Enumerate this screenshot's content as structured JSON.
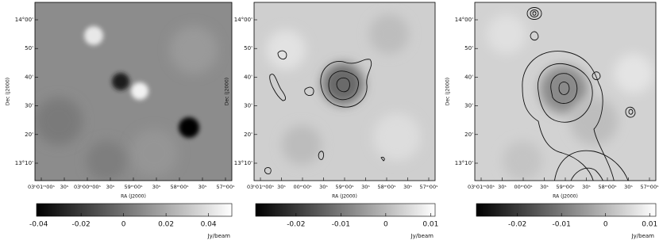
{
  "panels": [
    {
      "y_label": "Dec (J2000)",
      "y_ticks": [
        "14°00'",
        "50'",
        "40'",
        "30'",
        "20'",
        "13°10'"
      ],
      "x_label": "RA (J2000)",
      "x_ticks": [
        "03ʰ01ᵐ00ˢ",
        "30ˢ",
        "03ʰ00ᵐ00ˢ",
        "30ˢ",
        "59ᵐ00ˢ",
        "30ˢ",
        "58ᵐ00ˢ",
        "30ˢ",
        "57ᵐ00ˢ"
      ],
      "colorbar": {
        "lim": [
          -0.041,
          0.051
        ],
        "ticks": [
          -0.04,
          -0.02,
          0,
          0.02,
          0.04
        ],
        "label": "Jy/beam"
      }
    },
    {
      "y_label": "Dec (J2000)",
      "y_ticks": [
        "14°00'",
        "50'",
        "40'",
        "30'",
        "20'",
        "13°10'"
      ],
      "x_label": "RA (J2000)",
      "x_ticks": [
        "03ʰ01ᵐ00ˢ",
        "30ˢ",
        "00ᵐ00ˢ",
        "30ˢ",
        "59ᵐ00ˢ",
        "30ˢ",
        "58ᵐ00ˢ",
        "30ˢ",
        "57ᵐ00ˢ"
      ],
      "colorbar": {
        "lim": [
          -0.029,
          0.011
        ],
        "ticks": [
          -0.02,
          -0.01,
          0,
          0.01
        ],
        "label": "Jy/beam"
      }
    },
    {
      "y_label": "Dec (J2000)",
      "y_ticks": [
        "14°00'",
        "50'",
        "40'",
        "30'",
        "20'",
        "13°10'"
      ],
      "x_label": "RA (J2000)",
      "x_ticks": [
        "03ʰ01ᵐ00ˢ",
        "30ˢ",
        "00ᵐ00ˢ",
        "30ˢ",
        "59ᵐ00ˢ",
        "30ˢ",
        "58ᵐ00ˢ",
        "30ˢ",
        "57ᵐ00ˢ"
      ],
      "colorbar": {
        "lim": [
          -0.0293,
          0.0114
        ],
        "ticks": [
          -0.02,
          -0.01,
          0,
          0.01
        ],
        "label": "Jy/beam"
      }
    }
  ]
}
